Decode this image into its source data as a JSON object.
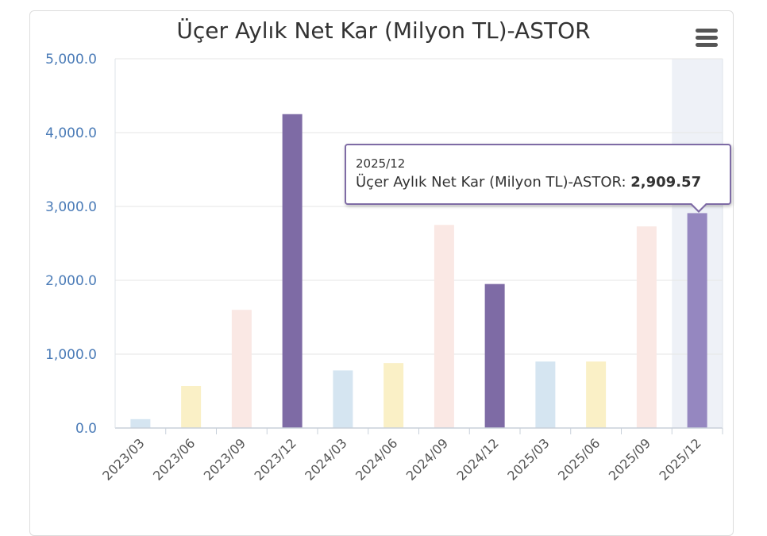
{
  "chart_data": {
    "type": "bar",
    "title": "Üçer Aylık Net Kar (Milyon TL)-ASTOR",
    "categories": [
      "2023/03",
      "2023/06",
      "2023/09",
      "2023/12",
      "2024/03",
      "2024/06",
      "2024/09",
      "2024/12",
      "2025/03",
      "2025/06",
      "2025/09",
      "2025/12"
    ],
    "series": [
      {
        "name": "Üçer Aylık Net Kar (Milyon TL)-ASTOR",
        "values": [
          120,
          570,
          1600,
          4250,
          780,
          880,
          2750,
          1950,
          900,
          900,
          2730,
          2909.57
        ]
      }
    ],
    "bar_colors": [
      "#d5e5f1",
      "#faf0c6",
      "#fae8e4",
      "#7e6ba5",
      "#d5e5f1",
      "#faf0c6",
      "#fae8e4",
      "#7e6ba5",
      "#d5e5f1",
      "#faf0c6",
      "#fae8e4",
      "#9587c0"
    ],
    "ylim": [
      0,
      5000
    ],
    "yticks": [
      "0.0",
      "1,000.0",
      "2,000.0",
      "3,000.0",
      "4,000.0",
      "5,000.0"
    ],
    "grid": true,
    "highlighted_category": "2025/12"
  },
  "tooltip": {
    "header": "2025/12",
    "series_label": "Üçer Aylık Net Kar (Milyon TL)-ASTOR: ",
    "value": "2,909.57"
  },
  "colors": {
    "axis_label": "#4a7bb7",
    "grid": "#e6e6e6",
    "highlight_band": "#eef1f7",
    "tooltip_border": "#7e6ba5"
  },
  "menu": {
    "icon": "hamburger-menu-icon"
  }
}
